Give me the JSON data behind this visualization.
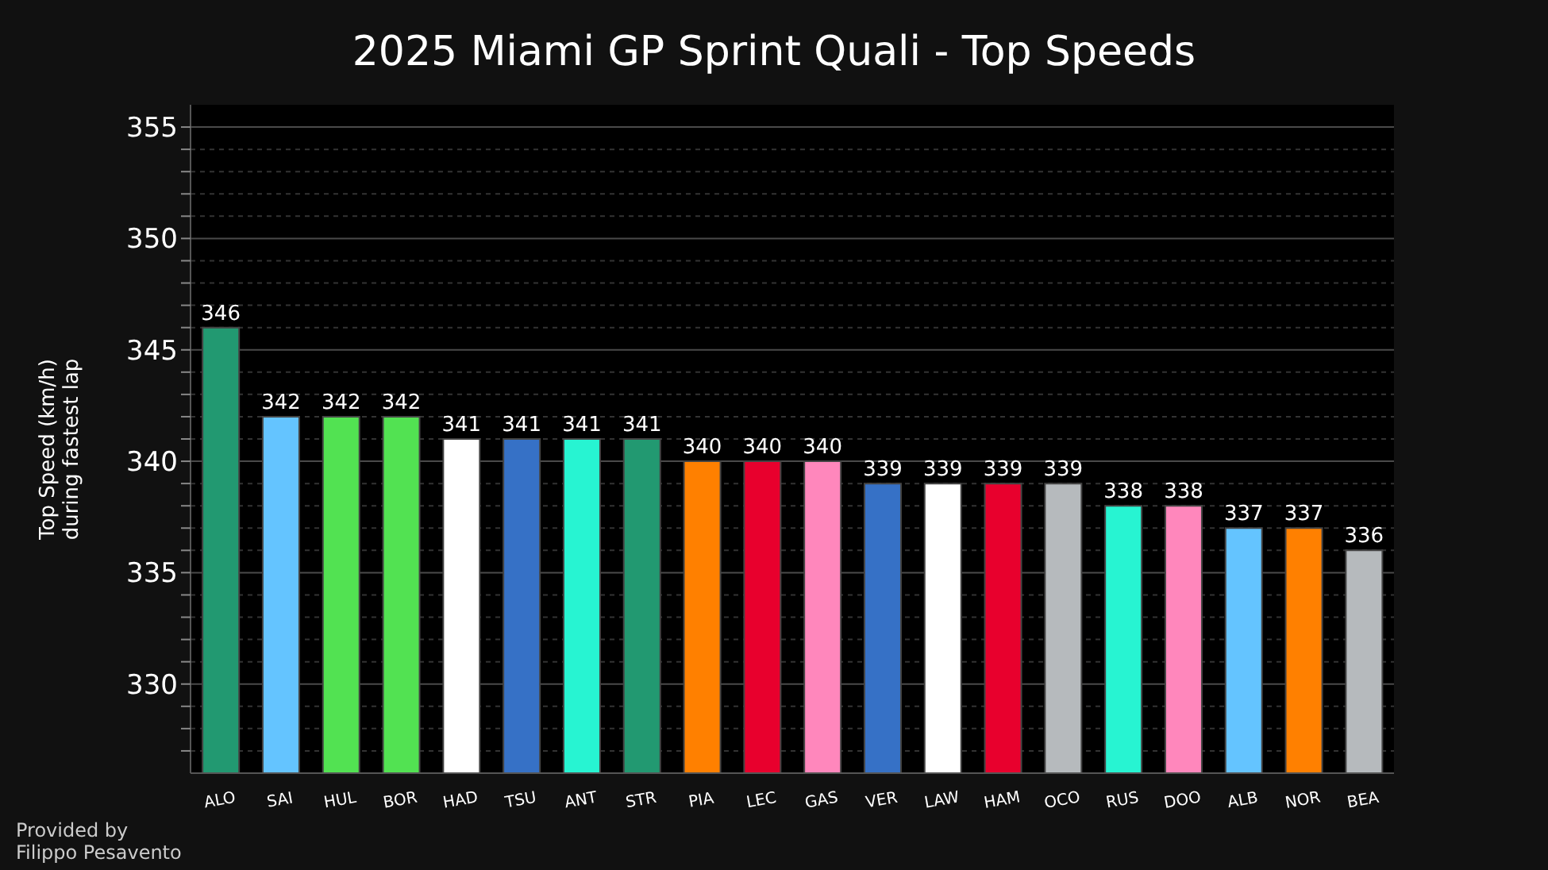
{
  "chart_data": {
    "type": "bar",
    "title": "2025 Miami GP Sprint Quali - Top Speeds",
    "ylabel": "Top Speed (km/h)\nduring fastest lap",
    "annotations": [
      "Provided by\nFilippo Pesavento"
    ],
    "categories": [
      "ALO",
      "SAI",
      "HUL",
      "BOR",
      "HAD",
      "TSU",
      "ANT",
      "STR",
      "PIA",
      "LEC",
      "GAS",
      "VER",
      "LAW",
      "HAM",
      "OCO",
      "RUS",
      "DOO",
      "ALB",
      "NOR",
      "BEA"
    ],
    "values": [
      346,
      342,
      342,
      342,
      341,
      341,
      341,
      341,
      340,
      340,
      340,
      339,
      339,
      339,
      339,
      338,
      338,
      337,
      337,
      336
    ],
    "colors": [
      "#229971",
      "#64c4ff",
      "#52e252",
      "#52e252",
      "#ffffff",
      "#3671c6",
      "#27f4d2",
      "#229971",
      "#ff8000",
      "#e8002d",
      "#ff87bc",
      "#3671c6",
      "#ffffff",
      "#e8002d",
      "#b6babd",
      "#27f4d2",
      "#ff87bc",
      "#64c4ff",
      "#ff8000",
      "#b6babd"
    ],
    "data_labels": true,
    "ylim": [
      326,
      356
    ],
    "yticks": [
      {
        "value": 327,
        "label": null
      },
      {
        "value": 328,
        "label": null
      },
      {
        "value": 329,
        "label": null
      },
      330,
      {
        "value": 331,
        "label": null
      },
      {
        "value": 332,
        "label": null
      },
      {
        "value": 333,
        "label": null
      },
      {
        "value": 334,
        "label": null
      },
      335,
      {
        "value": 336,
        "label": null
      },
      {
        "value": 337,
        "label": null
      },
      {
        "value": 338,
        "label": null
      },
      {
        "value": 339,
        "label": null
      },
      340,
      {
        "value": 341,
        "label": null
      },
      {
        "value": 342,
        "label": null
      },
      {
        "value": 343,
        "label": null
      },
      {
        "value": 344,
        "label": null
      },
      345,
      {
        "value": 346,
        "label": null
      },
      {
        "value": 347,
        "label": null
      },
      {
        "value": 348,
        "label": null
      },
      {
        "value": 349,
        "label": null
      },
      350,
      {
        "value": 351,
        "label": null
      },
      {
        "value": 352,
        "label": null
      },
      {
        "value": 353,
        "label": null
      },
      {
        "value": 354,
        "label": null
      },
      355
    ],
    "grid": "y"
  }
}
